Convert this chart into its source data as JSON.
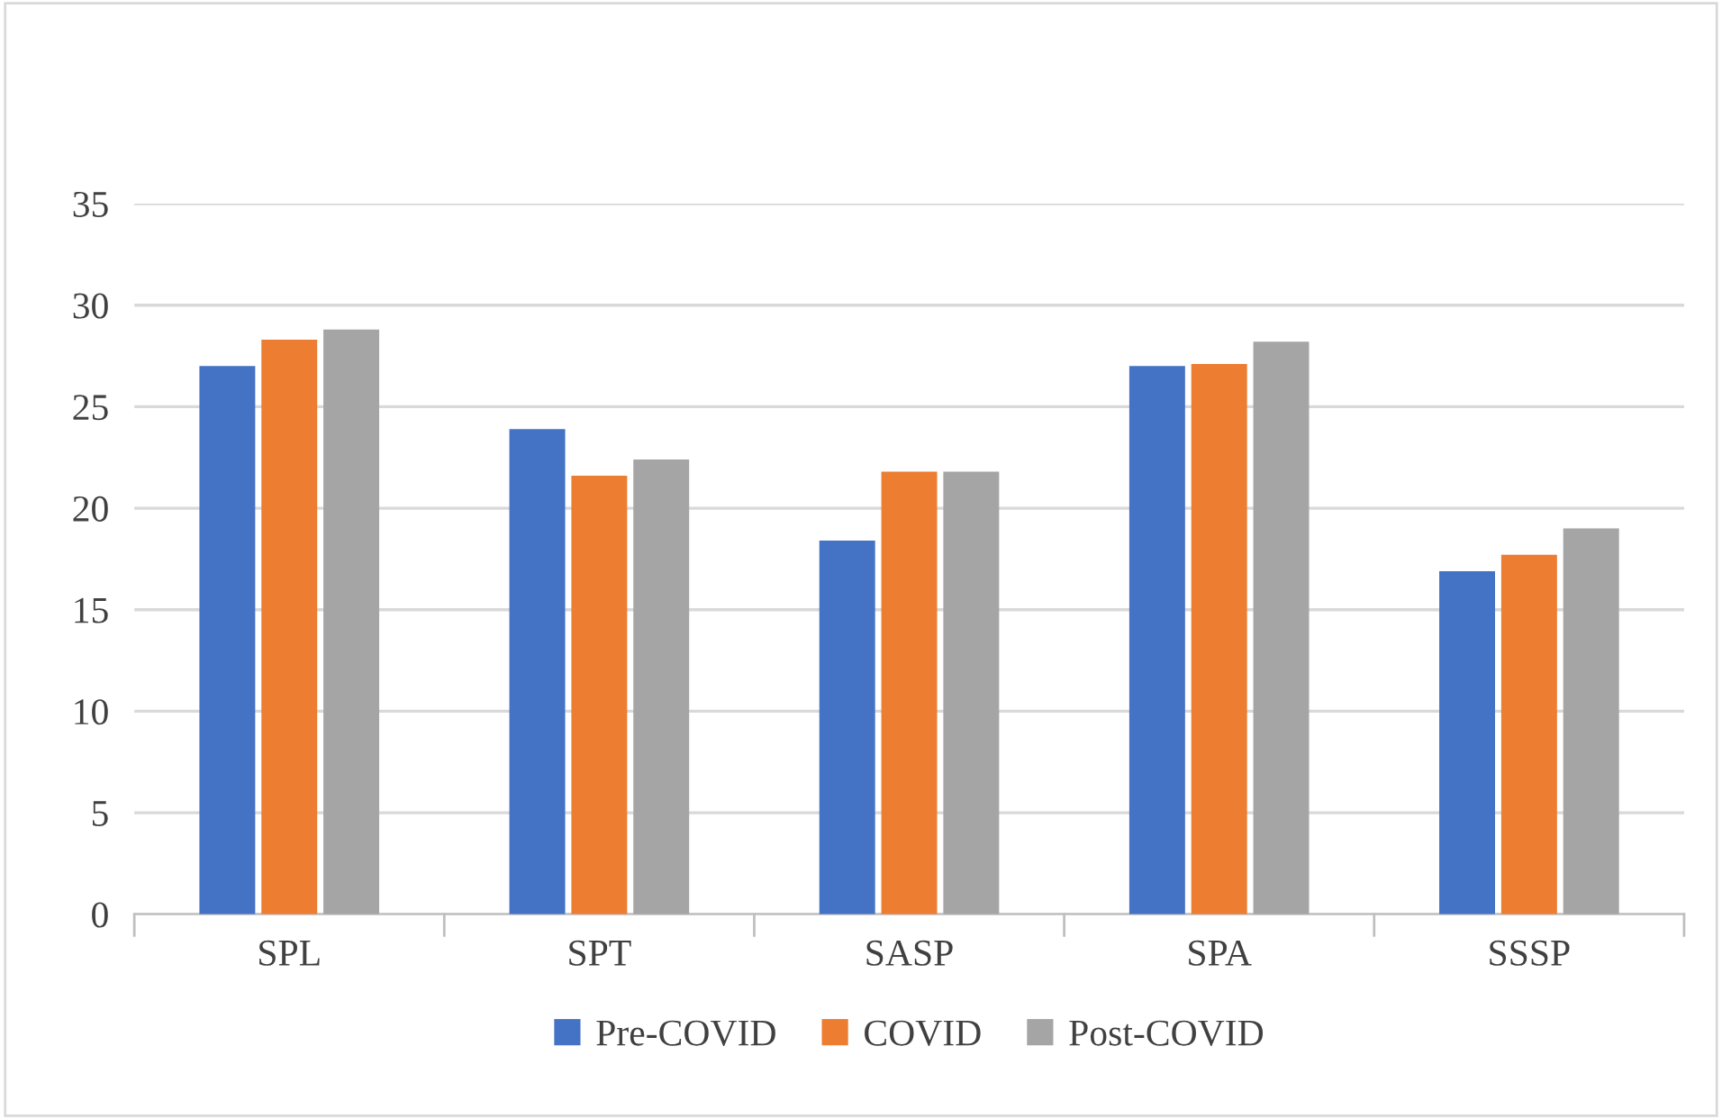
{
  "chart_data": {
    "type": "bar",
    "categories": [
      "SPL",
      "SPT",
      "SASP",
      "SPA",
      "SSSP"
    ],
    "series": [
      {
        "name": "Pre-COVID",
        "color": "#4472c4",
        "values": [
          27.0,
          23.9,
          18.4,
          27.0,
          16.9
        ]
      },
      {
        "name": "COVID",
        "color": "#ed7d31",
        "values": [
          28.3,
          21.6,
          21.8,
          27.1,
          17.7
        ]
      },
      {
        "name": "Post-COVID",
        "color": "#a5a5a5",
        "values": [
          28.8,
          22.4,
          21.8,
          28.2,
          19.0
        ]
      }
    ],
    "ylim": [
      0,
      35
    ],
    "yticks": [
      0,
      5,
      10,
      15,
      20,
      25,
      30,
      35
    ],
    "grid": "y",
    "legend": "bottom"
  }
}
